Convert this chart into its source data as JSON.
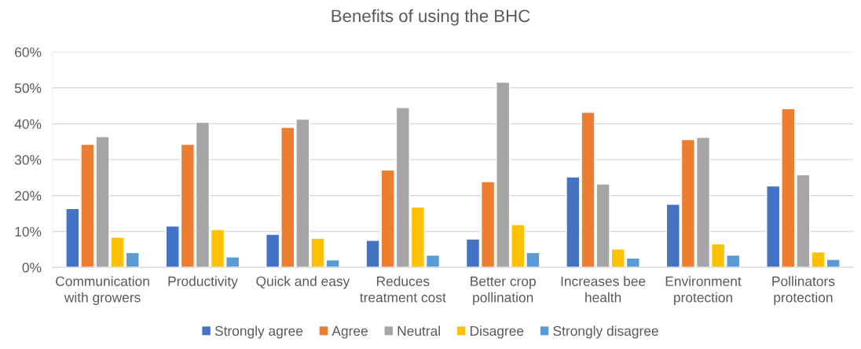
{
  "chart_data": {
    "type": "bar",
    "title": "Benefits of using the BHC",
    "categories": [
      "Communication\nwith growers",
      "Productivity",
      "Quick and easy",
      "Reduces\ntreatment cost",
      "Better crop\npollination",
      "Increases bee\nhealth",
      "Environment\nprotection",
      "Pollinators\nprotection"
    ],
    "series": [
      {
        "name": "Strongly agree",
        "color": "#4472c4",
        "values": [
          16.4,
          11.5,
          9.2,
          7.5,
          7.9,
          25.2,
          17.6,
          22.7
        ]
      },
      {
        "name": "Agree",
        "color": "#ed7d31",
        "values": [
          34.3,
          34.3,
          39.0,
          27.1,
          23.9,
          43.2,
          35.6,
          44.2
        ]
      },
      {
        "name": "Neutral",
        "color": "#a5a5a5",
        "values": [
          36.4,
          40.4,
          41.3,
          44.5,
          51.6,
          23.2,
          36.2,
          25.8
        ]
      },
      {
        "name": "Disagree",
        "color": "#ffc000",
        "values": [
          8.4,
          10.5,
          8.1,
          16.8,
          11.9,
          5.1,
          6.5,
          4.3
        ]
      },
      {
        "name": "Strongly disagree",
        "color": "#5b9bd5",
        "values": [
          4.1,
          2.9,
          2.1,
          3.4,
          4.1,
          2.6,
          3.4,
          2.2
        ]
      }
    ],
    "ylim": [
      0,
      60
    ],
    "yticks": [
      {
        "value": 0,
        "label": "0%"
      },
      {
        "value": 10,
        "label": "10%"
      },
      {
        "value": 20,
        "label": "20%"
      },
      {
        "value": 30,
        "label": "30%"
      },
      {
        "value": 40,
        "label": "40%"
      },
      {
        "value": 50,
        "label": "50%"
      },
      {
        "value": 60,
        "label": "60%"
      }
    ],
    "grid": "y",
    "legend": "bottom"
  }
}
